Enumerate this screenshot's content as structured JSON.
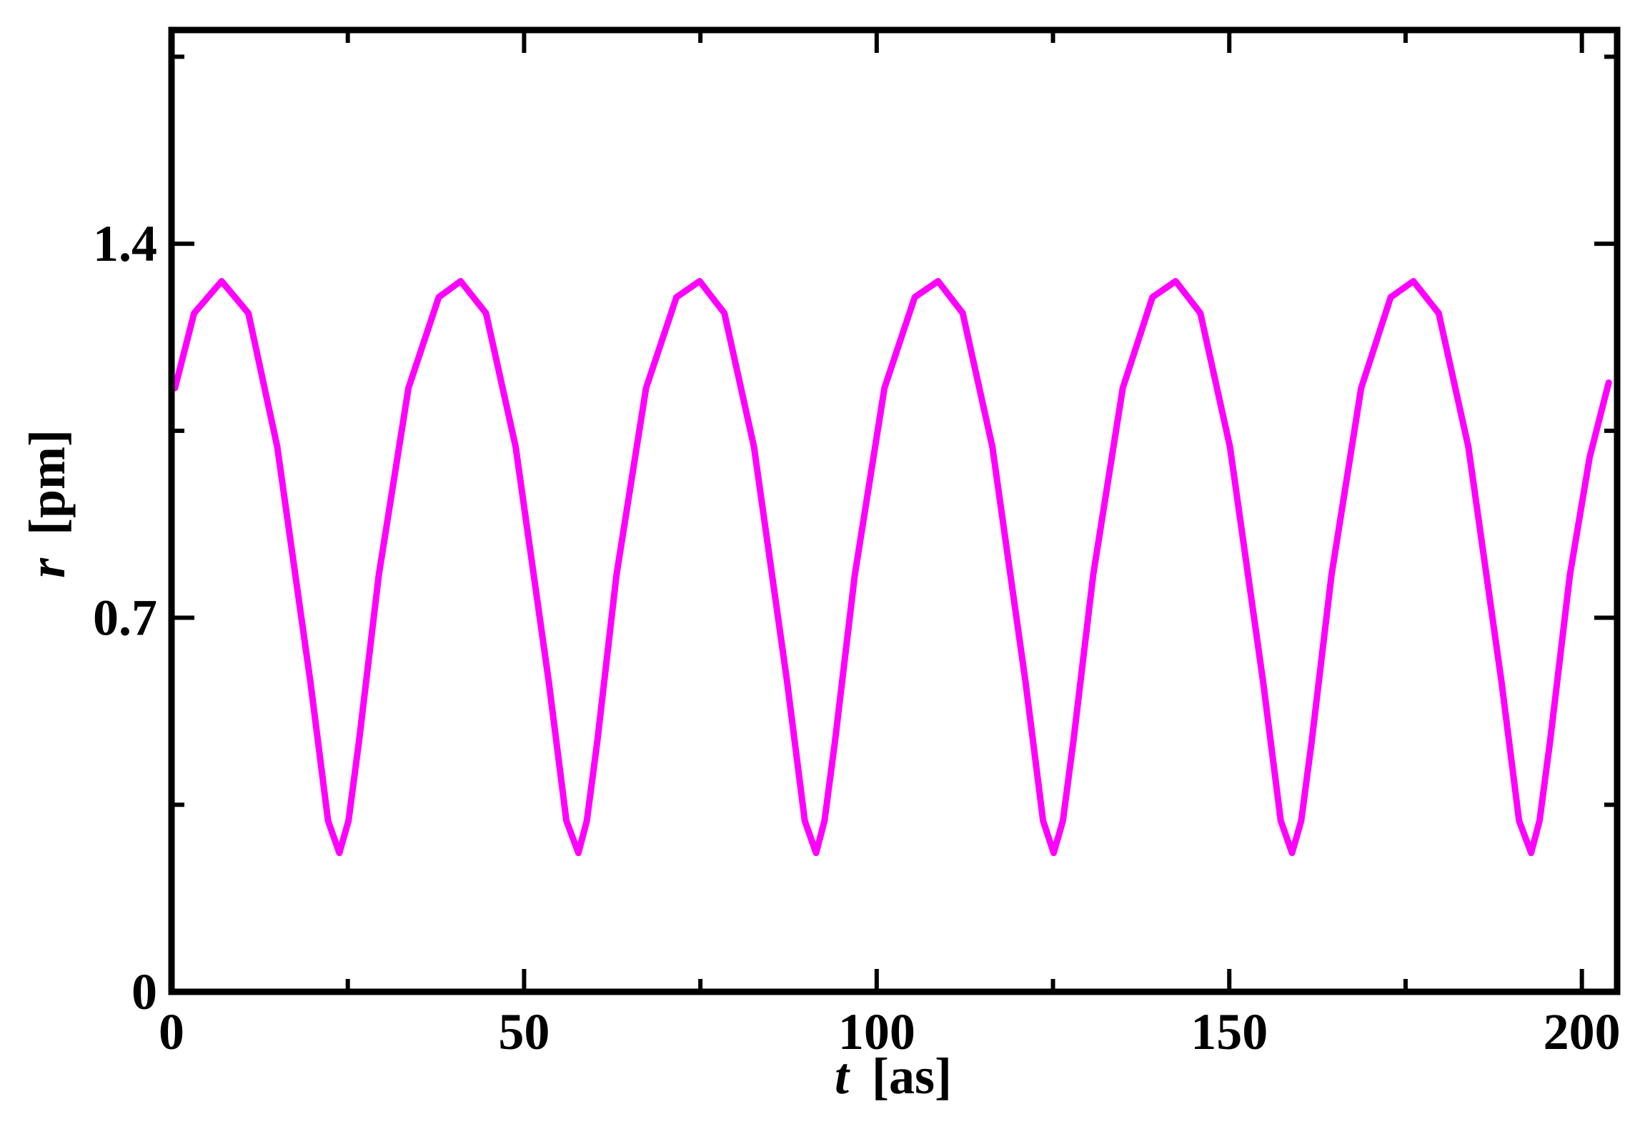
{
  "chart_data": {
    "type": "line",
    "xlabel_var": "t",
    "xlabel_unit": "[as]",
    "ylabel_var": "r",
    "ylabel_unit": "[pm]",
    "xlim": [
      0,
      205
    ],
    "ylim": [
      0,
      1.8
    ],
    "x_ticks": [
      0,
      50,
      100,
      150,
      200
    ],
    "y_ticks": [
      0,
      0.7,
      1.4
    ],
    "x_tick_labels": [
      "0",
      "50",
      "100",
      "150",
      "200"
    ],
    "y_tick_labels": [
      "0",
      "0.7",
      "1.4"
    ],
    "grid": false,
    "legend": "none",
    "color": "#ff00ff",
    "series": [
      {
        "x": [
          0.5,
          3.2,
          7.1,
          10.9,
          15.0,
          19.7,
          22.2,
          23.8,
          25.1,
          26.6,
          29.4,
          33.6,
          37.9,
          41.0,
          44.6,
          48.8,
          53.5,
          56.0,
          57.7,
          58.9,
          60.4,
          63.1,
          67.3,
          71.6,
          74.9,
          78.4,
          82.6,
          87.3,
          89.8,
          91.4,
          92.6,
          94.1,
          96.9,
          101.1,
          105.4,
          108.7,
          112.2,
          116.4,
          121.1,
          123.6,
          125.1,
          126.4,
          127.9,
          130.7,
          134.9,
          139.1,
          142.4,
          145.9,
          150.1,
          154.8,
          157.3,
          158.9,
          160.2,
          161.7,
          164.5,
          168.7,
          172.9,
          176.1,
          179.7,
          183.9,
          188.6,
          191.1,
          192.8,
          194.0,
          195.5,
          198.3,
          201.1,
          203.8
        ],
        "y": [
          1.13,
          1.27,
          1.33,
          1.27,
          1.02,
          0.58,
          0.32,
          0.26,
          0.32,
          0.47,
          0.78,
          1.13,
          1.3,
          1.33,
          1.27,
          1.02,
          0.58,
          0.32,
          0.26,
          0.32,
          0.47,
          0.78,
          1.13,
          1.3,
          1.33,
          1.27,
          1.02,
          0.58,
          0.32,
          0.26,
          0.32,
          0.47,
          0.78,
          1.13,
          1.3,
          1.33,
          1.27,
          1.02,
          0.58,
          0.32,
          0.26,
          0.32,
          0.47,
          0.78,
          1.13,
          1.3,
          1.33,
          1.27,
          1.02,
          0.58,
          0.32,
          0.26,
          0.32,
          0.47,
          0.78,
          1.13,
          1.3,
          1.33,
          1.27,
          1.02,
          0.58,
          0.32,
          0.26,
          0.32,
          0.47,
          0.78,
          1.0,
          1.14
        ]
      }
    ]
  }
}
